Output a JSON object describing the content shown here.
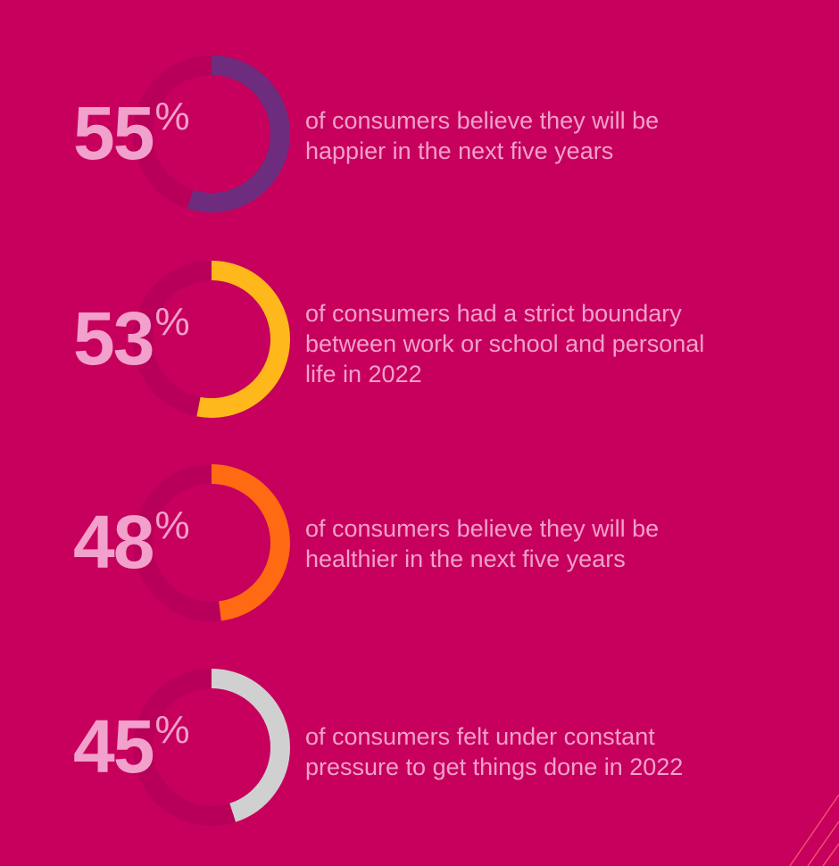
{
  "chart_data": {
    "type": "donut",
    "track_color": "#b8005a",
    "background": "#c6005c",
    "items": [
      {
        "value": 55,
        "label": "55",
        "unit": "%",
        "text": "of consumers believe they will be happier in the next five years",
        "lines": [
          "of consumers believe they will be",
          "happier in the next five years"
        ],
        "color": "#6e2c7e"
      },
      {
        "value": 53,
        "label": "53",
        "unit": "%",
        "text": "of consumers had a strict boundary between work or school and personal life in 2022",
        "lines": [
          "of consumers had a strict boundary",
          "between work or school and personal",
          "life in 2022"
        ],
        "color": "#ffb81c"
      },
      {
        "value": 48,
        "label": "48",
        "unit": "%",
        "text": "of consumers believe they will be healthier in the next five years",
        "lines": [
          "of consumers believe they will be",
          "healthier in the next five years"
        ],
        "color": "#ff6a13"
      },
      {
        "value": 45,
        "label": "45",
        "unit": "%",
        "text": "of consumers felt under constant pressure to get things done in 2022",
        "lines": [
          "of consumers felt under constant",
          "pressure to get things done in 2022"
        ],
        "color": "#d0d0d0"
      }
    ]
  }
}
